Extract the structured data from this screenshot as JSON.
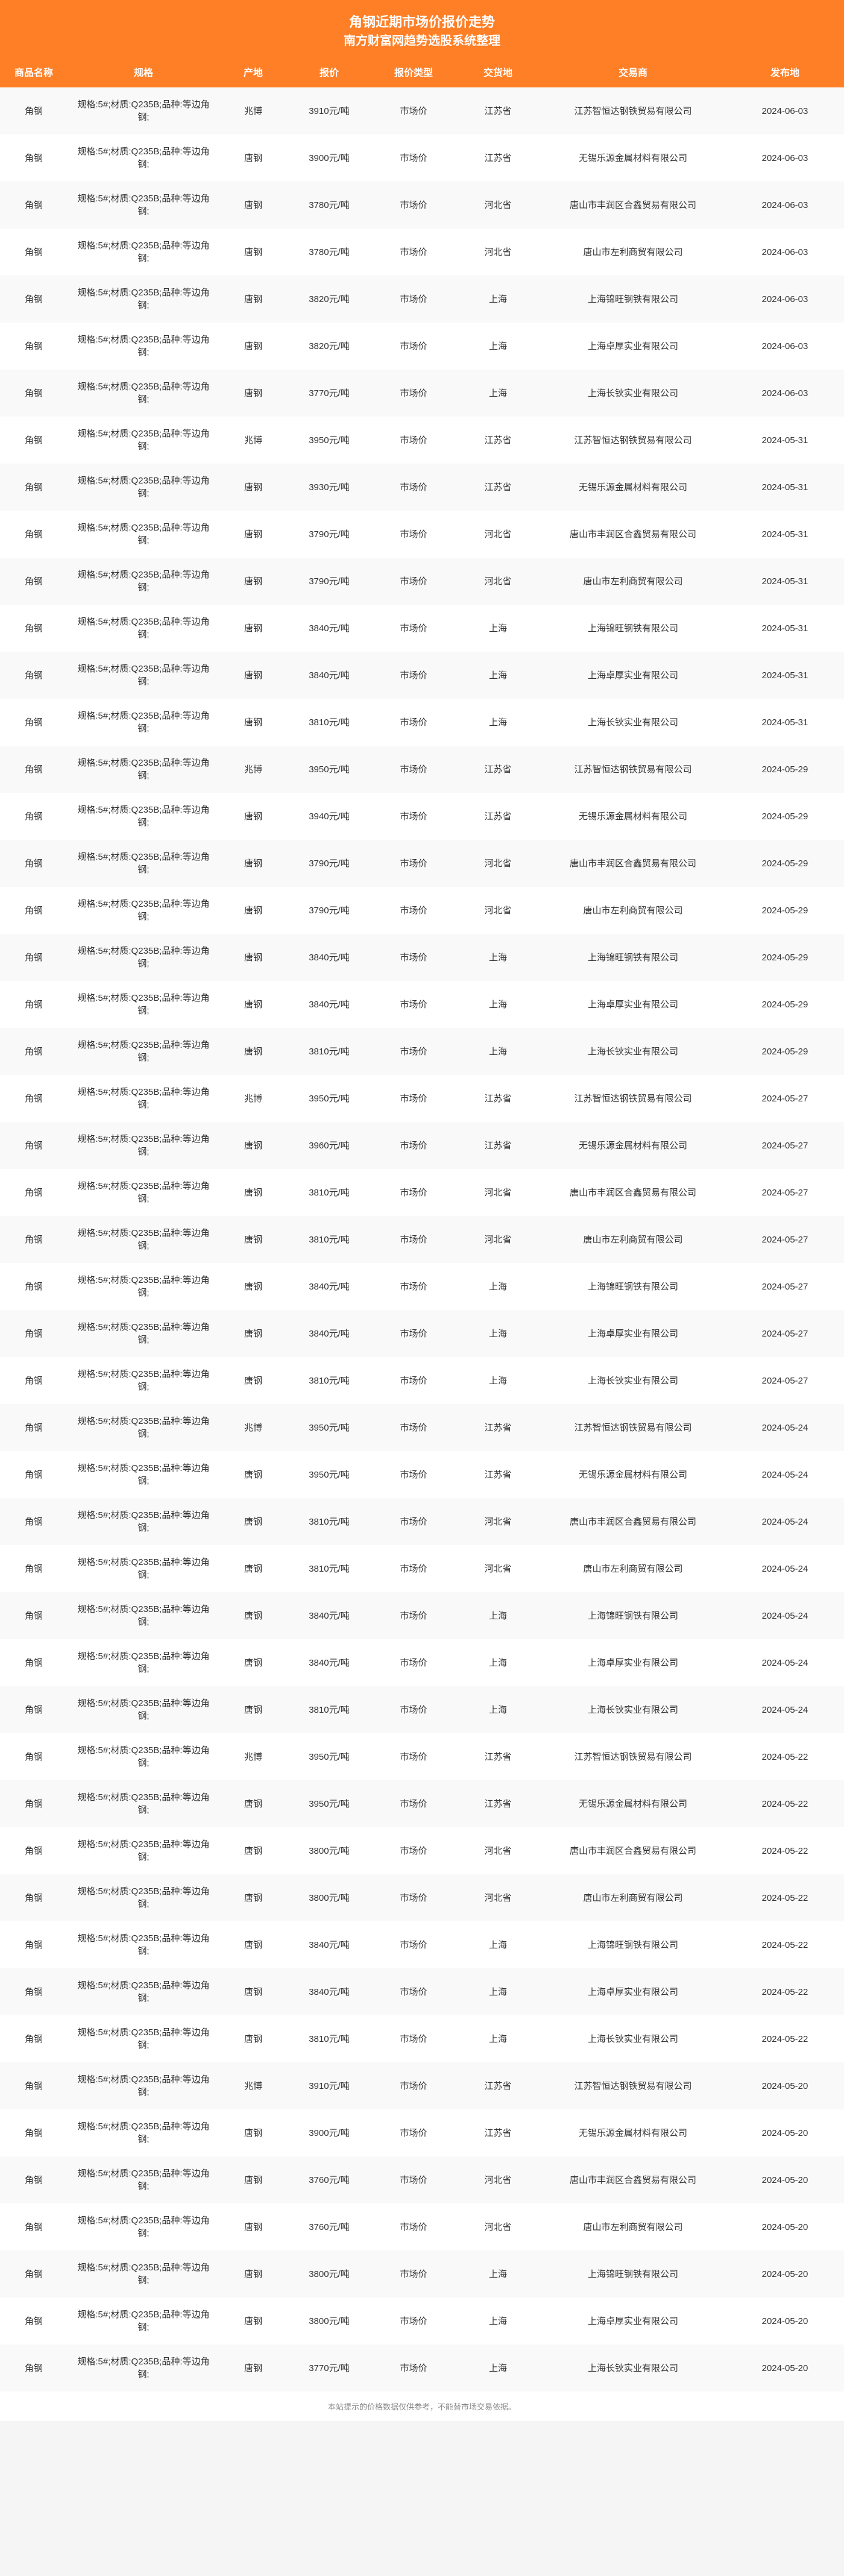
{
  "header": {
    "title": "角钢近期市场价报价走势",
    "subtitle": "南方财富网趋势选股系统整理"
  },
  "table": {
    "columns": [
      "商品名称",
      "规格",
      "产地",
      "报价",
      "报价类型",
      "交货地",
      "交易商",
      "发布地"
    ],
    "rows": [
      [
        "角钢",
        "规格:5#;材质:Q235B;品种:等边角钢;",
        "兆博",
        "3910元/吨",
        "市场价",
        "江苏省",
        "江苏智恒达钢铁贸易有限公司",
        "2024-06-03"
      ],
      [
        "角钢",
        "规格:5#;材质:Q235B;品种:等边角钢;",
        "唐钢",
        "3900元/吨",
        "市场价",
        "江苏省",
        "无锡乐源金属材料有限公司",
        "2024-06-03"
      ],
      [
        "角钢",
        "规格:5#;材质:Q235B;品种:等边角钢;",
        "唐钢",
        "3780元/吨",
        "市场价",
        "河北省",
        "唐山市丰润区合鑫贸易有限公司",
        "2024-06-03"
      ],
      [
        "角钢",
        "规格:5#;材质:Q235B;品种:等边角钢;",
        "唐钢",
        "3780元/吨",
        "市场价",
        "河北省",
        "唐山市左利商贸有限公司",
        "2024-06-03"
      ],
      [
        "角钢",
        "规格:5#;材质:Q235B;品种:等边角钢;",
        "唐钢",
        "3820元/吨",
        "市场价",
        "上海",
        "上海锦旺钢铁有限公司",
        "2024-06-03"
      ],
      [
        "角钢",
        "规格:5#;材质:Q235B;品种:等边角钢;",
        "唐钢",
        "3820元/吨",
        "市场价",
        "上海",
        "上海卓厚实业有限公司",
        "2024-06-03"
      ],
      [
        "角钢",
        "规格:5#;材质:Q235B;品种:等边角钢;",
        "唐钢",
        "3770元/吨",
        "市场价",
        "上海",
        "上海长钬实业有限公司",
        "2024-06-03"
      ],
      [
        "角钢",
        "规格:5#;材质:Q235B;品种:等边角钢;",
        "兆博",
        "3950元/吨",
        "市场价",
        "江苏省",
        "江苏智恒达钢铁贸易有限公司",
        "2024-05-31"
      ],
      [
        "角钢",
        "规格:5#;材质:Q235B;品种:等边角钢;",
        "唐钢",
        "3930元/吨",
        "市场价",
        "江苏省",
        "无锡乐源金属材料有限公司",
        "2024-05-31"
      ],
      [
        "角钢",
        "规格:5#;材质:Q235B;品种:等边角钢;",
        "唐钢",
        "3790元/吨",
        "市场价",
        "河北省",
        "唐山市丰润区合鑫贸易有限公司",
        "2024-05-31"
      ],
      [
        "角钢",
        "规格:5#;材质:Q235B;品种:等边角钢;",
        "唐钢",
        "3790元/吨",
        "市场价",
        "河北省",
        "唐山市左利商贸有限公司",
        "2024-05-31"
      ],
      [
        "角钢",
        "规格:5#;材质:Q235B;品种:等边角钢;",
        "唐钢",
        "3840元/吨",
        "市场价",
        "上海",
        "上海锦旺钢铁有限公司",
        "2024-05-31"
      ],
      [
        "角钢",
        "规格:5#;材质:Q235B;品种:等边角钢;",
        "唐钢",
        "3840元/吨",
        "市场价",
        "上海",
        "上海卓厚实业有限公司",
        "2024-05-31"
      ],
      [
        "角钢",
        "规格:5#;材质:Q235B;品种:等边角钢;",
        "唐钢",
        "3810元/吨",
        "市场价",
        "上海",
        "上海长钬实业有限公司",
        "2024-05-31"
      ],
      [
        "角钢",
        "规格:5#;材质:Q235B;品种:等边角钢;",
        "兆博",
        "3950元/吨",
        "市场价",
        "江苏省",
        "江苏智恒达钢铁贸易有限公司",
        "2024-05-29"
      ],
      [
        "角钢",
        "规格:5#;材质:Q235B;品种:等边角钢;",
        "唐钢",
        "3940元/吨",
        "市场价",
        "江苏省",
        "无锡乐源金属材料有限公司",
        "2024-05-29"
      ],
      [
        "角钢",
        "规格:5#;材质:Q235B;品种:等边角钢;",
        "唐钢",
        "3790元/吨",
        "市场价",
        "河北省",
        "唐山市丰润区合鑫贸易有限公司",
        "2024-05-29"
      ],
      [
        "角钢",
        "规格:5#;材质:Q235B;品种:等边角钢;",
        "唐钢",
        "3790元/吨",
        "市场价",
        "河北省",
        "唐山市左利商贸有限公司",
        "2024-05-29"
      ],
      [
        "角钢",
        "规格:5#;材质:Q235B;品种:等边角钢;",
        "唐钢",
        "3840元/吨",
        "市场价",
        "上海",
        "上海锦旺钢铁有限公司",
        "2024-05-29"
      ],
      [
        "角钢",
        "规格:5#;材质:Q235B;品种:等边角钢;",
        "唐钢",
        "3840元/吨",
        "市场价",
        "上海",
        "上海卓厚实业有限公司",
        "2024-05-29"
      ],
      [
        "角钢",
        "规格:5#;材质:Q235B;品种:等边角钢;",
        "唐钢",
        "3810元/吨",
        "市场价",
        "上海",
        "上海长钬实业有限公司",
        "2024-05-29"
      ],
      [
        "角钢",
        "规格:5#;材质:Q235B;品种:等边角钢;",
        "兆博",
        "3950元/吨",
        "市场价",
        "江苏省",
        "江苏智恒达钢铁贸易有限公司",
        "2024-05-27"
      ],
      [
        "角钢",
        "规格:5#;材质:Q235B;品种:等边角钢;",
        "唐钢",
        "3960元/吨",
        "市场价",
        "江苏省",
        "无锡乐源金属材料有限公司",
        "2024-05-27"
      ],
      [
        "角钢",
        "规格:5#;材质:Q235B;品种:等边角钢;",
        "唐钢",
        "3810元/吨",
        "市场价",
        "河北省",
        "唐山市丰润区合鑫贸易有限公司",
        "2024-05-27"
      ],
      [
        "角钢",
        "规格:5#;材质:Q235B;品种:等边角钢;",
        "唐钢",
        "3810元/吨",
        "市场价",
        "河北省",
        "唐山市左利商贸有限公司",
        "2024-05-27"
      ],
      [
        "角钢",
        "规格:5#;材质:Q235B;品种:等边角钢;",
        "唐钢",
        "3840元/吨",
        "市场价",
        "上海",
        "上海锦旺钢铁有限公司",
        "2024-05-27"
      ],
      [
        "角钢",
        "规格:5#;材质:Q235B;品种:等边角钢;",
        "唐钢",
        "3840元/吨",
        "市场价",
        "上海",
        "上海卓厚实业有限公司",
        "2024-05-27"
      ],
      [
        "角钢",
        "规格:5#;材质:Q235B;品种:等边角钢;",
        "唐钢",
        "3810元/吨",
        "市场价",
        "上海",
        "上海长钬实业有限公司",
        "2024-05-27"
      ],
      [
        "角钢",
        "规格:5#;材质:Q235B;品种:等边角钢;",
        "兆博",
        "3950元/吨",
        "市场价",
        "江苏省",
        "江苏智恒达钢铁贸易有限公司",
        "2024-05-24"
      ],
      [
        "角钢",
        "规格:5#;材质:Q235B;品种:等边角钢;",
        "唐钢",
        "3950元/吨",
        "市场价",
        "江苏省",
        "无锡乐源金属材料有限公司",
        "2024-05-24"
      ],
      [
        "角钢",
        "规格:5#;材质:Q235B;品种:等边角钢;",
        "唐钢",
        "3810元/吨",
        "市场价",
        "河北省",
        "唐山市丰润区合鑫贸易有限公司",
        "2024-05-24"
      ],
      [
        "角钢",
        "规格:5#;材质:Q235B;品种:等边角钢;",
        "唐钢",
        "3810元/吨",
        "市场价",
        "河北省",
        "唐山市左利商贸有限公司",
        "2024-05-24"
      ],
      [
        "角钢",
        "规格:5#;材质:Q235B;品种:等边角钢;",
        "唐钢",
        "3840元/吨",
        "市场价",
        "上海",
        "上海锦旺钢铁有限公司",
        "2024-05-24"
      ],
      [
        "角钢",
        "规格:5#;材质:Q235B;品种:等边角钢;",
        "唐钢",
        "3840元/吨",
        "市场价",
        "上海",
        "上海卓厚实业有限公司",
        "2024-05-24"
      ],
      [
        "角钢",
        "规格:5#;材质:Q235B;品种:等边角钢;",
        "唐钢",
        "3810元/吨",
        "市场价",
        "上海",
        "上海长钬实业有限公司",
        "2024-05-24"
      ],
      [
        "角钢",
        "规格:5#;材质:Q235B;品种:等边角钢;",
        "兆博",
        "3950元/吨",
        "市场价",
        "江苏省",
        "江苏智恒达钢铁贸易有限公司",
        "2024-05-22"
      ],
      [
        "角钢",
        "规格:5#;材质:Q235B;品种:等边角钢;",
        "唐钢",
        "3950元/吨",
        "市场价",
        "江苏省",
        "无锡乐源金属材料有限公司",
        "2024-05-22"
      ],
      [
        "角钢",
        "规格:5#;材质:Q235B;品种:等边角钢;",
        "唐钢",
        "3800元/吨",
        "市场价",
        "河北省",
        "唐山市丰润区合鑫贸易有限公司",
        "2024-05-22"
      ],
      [
        "角钢",
        "规格:5#;材质:Q235B;品种:等边角钢;",
        "唐钢",
        "3800元/吨",
        "市场价",
        "河北省",
        "唐山市左利商贸有限公司",
        "2024-05-22"
      ],
      [
        "角钢",
        "规格:5#;材质:Q235B;品种:等边角钢;",
        "唐钢",
        "3840元/吨",
        "市场价",
        "上海",
        "上海锦旺钢铁有限公司",
        "2024-05-22"
      ],
      [
        "角钢",
        "规格:5#;材质:Q235B;品种:等边角钢;",
        "唐钢",
        "3840元/吨",
        "市场价",
        "上海",
        "上海卓厚实业有限公司",
        "2024-05-22"
      ],
      [
        "角钢",
        "规格:5#;材质:Q235B;品种:等边角钢;",
        "唐钢",
        "3810元/吨",
        "市场价",
        "上海",
        "上海长钬实业有限公司",
        "2024-05-22"
      ],
      [
        "角钢",
        "规格:5#;材质:Q235B;品种:等边角钢;",
        "兆博",
        "3910元/吨",
        "市场价",
        "江苏省",
        "江苏智恒达钢铁贸易有限公司",
        "2024-05-20"
      ],
      [
        "角钢",
        "规格:5#;材质:Q235B;品种:等边角钢;",
        "唐钢",
        "3900元/吨",
        "市场价",
        "江苏省",
        "无锡乐源金属材料有限公司",
        "2024-05-20"
      ],
      [
        "角钢",
        "规格:5#;材质:Q235B;品种:等边角钢;",
        "唐钢",
        "3760元/吨",
        "市场价",
        "河北省",
        "唐山市丰润区合鑫贸易有限公司",
        "2024-05-20"
      ],
      [
        "角钢",
        "规格:5#;材质:Q235B;品种:等边角钢;",
        "唐钢",
        "3760元/吨",
        "市场价",
        "河北省",
        "唐山市左利商贸有限公司",
        "2024-05-20"
      ],
      [
        "角钢",
        "规格:5#;材质:Q235B;品种:等边角钢;",
        "唐钢",
        "3800元/吨",
        "市场价",
        "上海",
        "上海锦旺钢铁有限公司",
        "2024-05-20"
      ],
      [
        "角钢",
        "规格:5#;材质:Q235B;品种:等边角钢;",
        "唐钢",
        "3800元/吨",
        "市场价",
        "上海",
        "上海卓厚实业有限公司",
        "2024-05-20"
      ],
      [
        "角钢",
        "规格:5#;材质:Q235B;品种:等边角钢;",
        "唐钢",
        "3770元/吨",
        "市场价",
        "上海",
        "上海长钬实业有限公司",
        "2024-05-20"
      ]
    ]
  },
  "footer": {
    "text": "本站提示的价格数据仅供参考，不能替市场交易依据。"
  },
  "watermark": "南方财富网",
  "colors": {
    "header_bg": "#ff7f27",
    "header_text": "#ffffff",
    "row_odd": "#f9f9f9",
    "row_even": "#ffffff",
    "text": "#333333",
    "footer_text": "#888888"
  }
}
